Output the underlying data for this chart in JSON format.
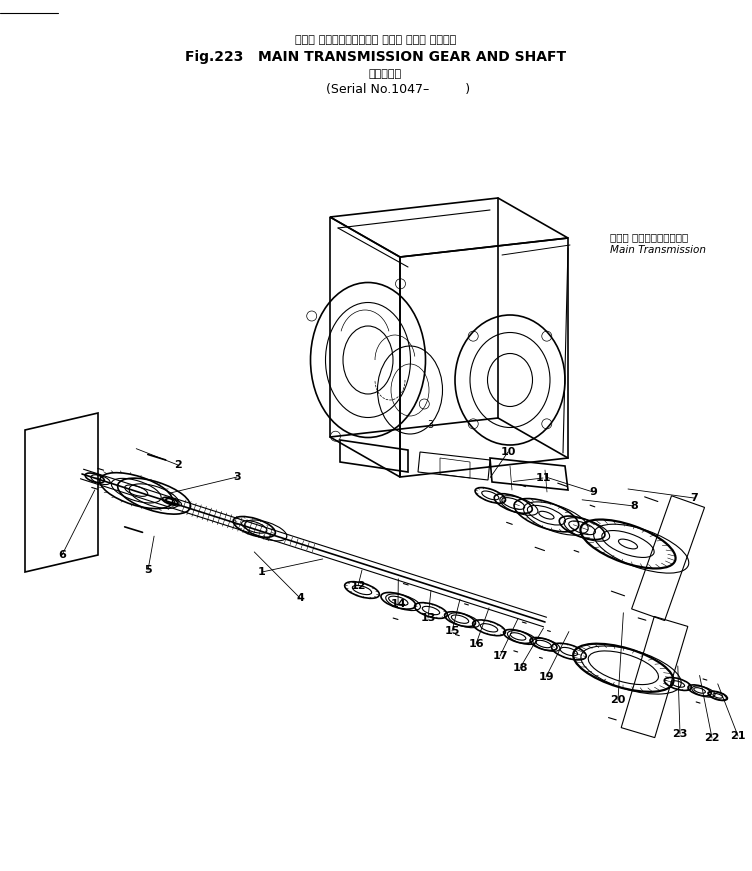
{
  "title_jp": "メイン トランスミッション ギヤー および シャフト",
  "title_en": "Fig.223   MAIN TRANSMISSION GEAR AND SHAFT",
  "title_serial_jp": "（適用底機",
  "title_serial_en": "(Serial No.1047–         )",
  "label_main_trans_jp": "メイン トランスミッション",
  "label_main_trans_en": "Main Transmission",
  "bg_color": "#ffffff",
  "ink_color": "#000000"
}
